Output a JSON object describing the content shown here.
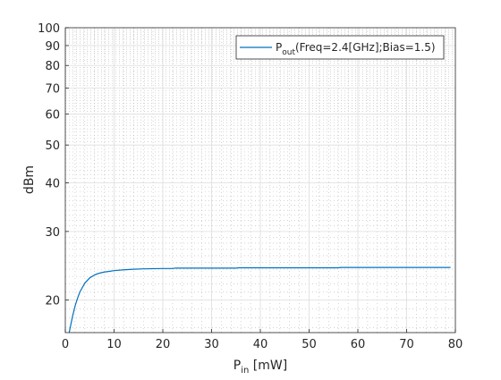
{
  "chart_data": {
    "type": "line",
    "title": "",
    "xlabel": {
      "main": "P",
      "sub": "in",
      "rest": " [mW]"
    },
    "ylabel": "dBm",
    "yscale": "log",
    "xlim": [
      0,
      80
    ],
    "ylim": [
      16.5,
      100
    ],
    "x_ticks": [
      0,
      10,
      20,
      30,
      40,
      50,
      60,
      70,
      80
    ],
    "y_ticks": [
      20,
      30,
      40,
      50,
      60,
      70,
      80,
      90,
      100
    ],
    "grid": true,
    "minor_grid": true,
    "legend": {
      "placement": "top-right",
      "main": "P",
      "sub": "out",
      "rest": "(Freq=2.4[GHz];Bias=1.5)"
    },
    "series": [
      {
        "name": "Pout(Freq=2.4[GHz];Bias=1.5)",
        "color": "#0072BD",
        "x": [
          0.8,
          1.0,
          1.5,
          2.0,
          2.5,
          3.0,
          4.0,
          5.0,
          6.0,
          7.0,
          8.0,
          9.0,
          10.0,
          12.0,
          14.0,
          16.0,
          20.0,
          22.0,
          22.5,
          30.0,
          35.0,
          35.5,
          45.0,
          56.0,
          56.5,
          65.0,
          79.0
        ],
        "y": [
          16.5,
          17.0,
          18.2,
          19.3,
          20.2,
          21.0,
          22.1,
          22.8,
          23.2,
          23.45,
          23.6,
          23.7,
          23.8,
          23.92,
          24.0,
          24.05,
          24.1,
          24.1,
          24.15,
          24.15,
          24.15,
          24.2,
          24.2,
          24.2,
          24.25,
          24.25,
          24.25
        ]
      }
    ]
  }
}
